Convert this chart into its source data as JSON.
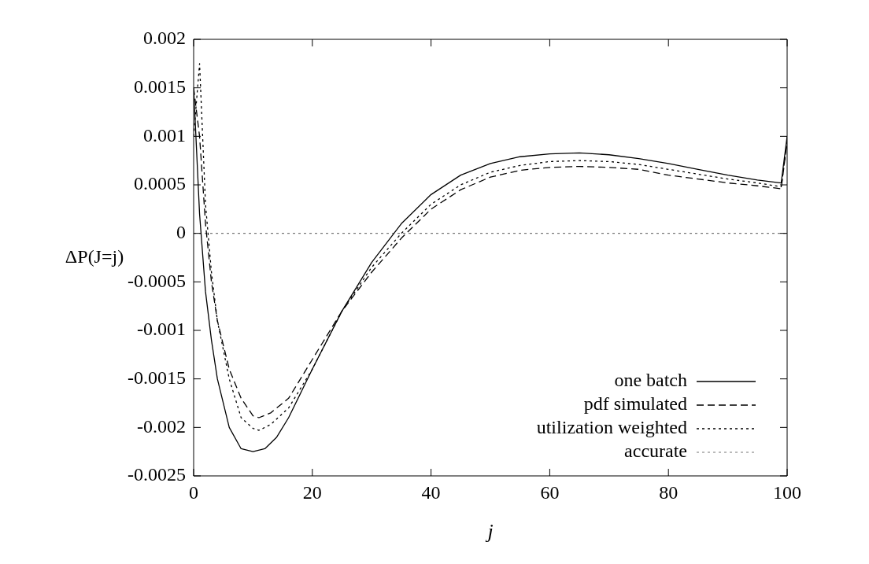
{
  "chart_data": {
    "type": "line",
    "xlabel": "j",
    "ylabel": "ΔP(J=j)",
    "xlim": [
      0,
      100
    ],
    "xticks": [
      0,
      20,
      40,
      60,
      80,
      100
    ],
    "ylim": [
      -0.0025,
      0.002
    ],
    "yticks": [
      -0.0025,
      -0.002,
      -0.0015,
      -0.001,
      -0.0005,
      0,
      0.0005,
      0.001,
      0.0015,
      0.002
    ],
    "grid": false,
    "legend": "bottom right",
    "marker": "none",
    "series": [
      {
        "name": "one batch",
        "color": "#000000",
        "line_style": "solid",
        "x": [
          0,
          1,
          2,
          3,
          4,
          6,
          8,
          10,
          12,
          14,
          16,
          20,
          25,
          30,
          35,
          40,
          45,
          50,
          55,
          60,
          65,
          70,
          75,
          80,
          85,
          90,
          95,
          99,
          100
        ],
        "values": [
          0.0015,
          0.0002,
          -0.0006,
          -0.0011,
          -0.0015,
          -0.002,
          -0.00222,
          -0.00225,
          -0.00222,
          -0.0021,
          -0.0019,
          -0.0014,
          -0.0008,
          -0.0003,
          0.0001,
          0.0004,
          0.0006,
          0.00072,
          0.00079,
          0.00082,
          0.00083,
          0.00081,
          0.00077,
          0.00072,
          0.00066,
          0.0006,
          0.00055,
          0.00052,
          0.001
        ]
      },
      {
        "name": "pdf simulated",
        "color": "#000000",
        "line_style": "dashed",
        "x": [
          0,
          1,
          2,
          3,
          4,
          6,
          8,
          10,
          11,
          13,
          16,
          20,
          25,
          30,
          35,
          40,
          45,
          50,
          55,
          60,
          65,
          70,
          75,
          80,
          85,
          90,
          95,
          99,
          100
        ],
        "values": [
          0.0015,
          0.001,
          0.0001,
          -0.0005,
          -0.0009,
          -0.0014,
          -0.0017,
          -0.00188,
          -0.0019,
          -0.00185,
          -0.0017,
          -0.0013,
          -0.0008,
          -0.0004,
          -5e-05,
          0.00025,
          0.00045,
          0.00058,
          0.00065,
          0.00068,
          0.00069,
          0.00068,
          0.00066,
          0.0006,
          0.00056,
          0.00052,
          0.00049,
          0.00046,
          0.00095
        ]
      },
      {
        "name": "utilization weighted",
        "color": "#000000",
        "line_style": "dotted",
        "x": [
          0,
          1,
          2,
          3,
          4,
          6,
          8,
          10,
          11,
          13,
          16,
          20,
          25,
          30,
          35,
          40,
          45,
          50,
          55,
          60,
          65,
          70,
          75,
          80,
          85,
          90,
          95,
          99,
          100
        ],
        "values": [
          0.001,
          0.00175,
          0.0003,
          -0.0004,
          -0.0009,
          -0.0015,
          -0.0019,
          -0.00201,
          -0.00203,
          -0.00197,
          -0.0018,
          -0.0014,
          -0.0008,
          -0.00035,
          0,
          0.0003,
          0.0005,
          0.00063,
          0.0007,
          0.00074,
          0.00075,
          0.00074,
          0.00071,
          0.00066,
          0.00061,
          0.00056,
          0.00052,
          0.00048,
          0.00095
        ]
      },
      {
        "name": "accurate",
        "color": "#777777",
        "line_style": "dotted",
        "x": [
          0,
          100
        ],
        "values": [
          0,
          0
        ]
      }
    ]
  }
}
